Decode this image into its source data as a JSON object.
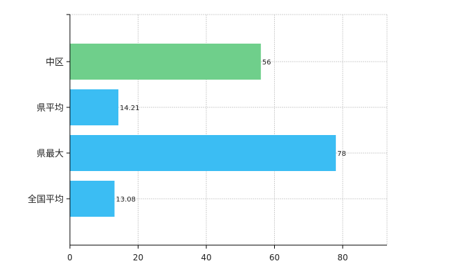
{
  "chart_data": {
    "type": "bar",
    "orientation": "horizontal",
    "categories": [
      "中区",
      "県平均",
      "県最大",
      "全国平均"
    ],
    "values": [
      56,
      14.21,
      78,
      13.08
    ],
    "value_labels": [
      "56",
      "14.21",
      "78",
      "13.08"
    ],
    "bar_colors": [
      "#6fcf8b",
      "#3bbdf3",
      "#3bbdf3",
      "#3bbdf3"
    ],
    "x_ticks": [
      "0",
      "20",
      "40",
      "60",
      "80"
    ],
    "xlim": [
      0,
      93
    ],
    "title": "",
    "xlabel": "",
    "ylabel": "",
    "grid": true,
    "legend": "none"
  }
}
